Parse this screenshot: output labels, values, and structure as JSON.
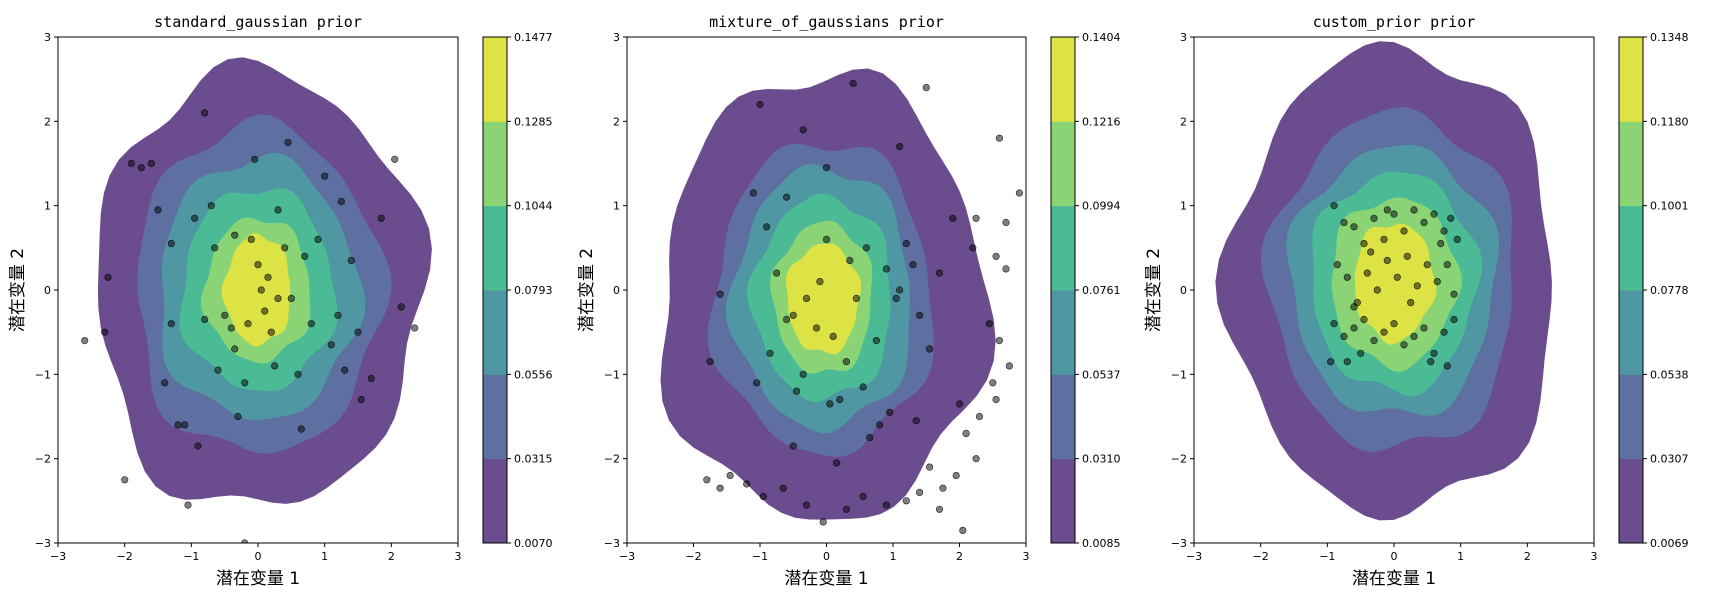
{
  "chart_data": [
    {
      "type": "contour",
      "title": "standard_gaussian prior",
      "xlabel": "潜在变量 1",
      "ylabel": "潜在变量 2",
      "xlim": [
        -3,
        3
      ],
      "ylim": [
        -3,
        3
      ],
      "xticks": [
        "−3",
        "−2",
        "−1",
        "0",
        "1",
        "2",
        "3"
      ],
      "yticks": [
        "−3",
        "−2",
        "−1",
        "0",
        "1",
        "2",
        "3"
      ],
      "colorbar_ticks": [
        "0.0070",
        "0.0315",
        "0.0556",
        "0.0793",
        "0.1044",
        "0.1285",
        "0.1477"
      ],
      "density_center": [
        0.0,
        0.0
      ],
      "level_radii": [
        [
          2.45,
          2.6
        ],
        [
          1.85,
          1.95
        ],
        [
          1.5,
          1.55
        ],
        [
          1.15,
          1.2
        ],
        [
          0.8,
          0.85
        ],
        [
          0.5,
          0.65
        ]
      ],
      "points": [
        [
          -2.6,
          -0.6
        ],
        [
          -2.3,
          -0.5
        ],
        [
          -2.25,
          0.15
        ],
        [
          -2.0,
          -2.25
        ],
        [
          -1.9,
          1.5
        ],
        [
          -1.75,
          1.45
        ],
        [
          -1.6,
          1.5
        ],
        [
          -1.5,
          0.95
        ],
        [
          -1.4,
          -1.1
        ],
        [
          -1.3,
          0.55
        ],
        [
          -1.2,
          -1.6
        ],
        [
          -1.1,
          -1.6
        ],
        [
          -0.9,
          -1.85
        ],
        [
          -1.05,
          -2.55
        ],
        [
          -0.8,
          2.1
        ],
        [
          -0.7,
          1.0
        ],
        [
          -0.65,
          0.5
        ],
        [
          -0.5,
          -0.3
        ],
        [
          -0.4,
          -0.45
        ],
        [
          -0.35,
          -0.7
        ],
        [
          -0.3,
          -1.5
        ],
        [
          -0.2,
          -1.1
        ],
        [
          -0.1,
          0.6
        ],
        [
          0.0,
          0.3
        ],
        [
          0.05,
          0.0
        ],
        [
          0.1,
          -0.25
        ],
        [
          0.15,
          0.15
        ],
        [
          0.2,
          -0.5
        ],
        [
          0.25,
          -0.9
        ],
        [
          0.3,
          0.95
        ],
        [
          0.4,
          0.5
        ],
        [
          0.5,
          -0.1
        ],
        [
          0.6,
          -1.0
        ],
        [
          0.7,
          0.4
        ],
        [
          0.8,
          -0.4
        ],
        [
          0.9,
          0.6
        ],
        [
          1.0,
          1.35
        ],
        [
          1.1,
          -0.65
        ],
        [
          1.2,
          -0.3
        ],
        [
          1.3,
          -0.95
        ],
        [
          1.4,
          0.35
        ],
        [
          1.5,
          -0.5
        ],
        [
          1.55,
          -1.3
        ],
        [
          1.7,
          -1.05
        ],
        [
          1.85,
          0.85
        ],
        [
          2.05,
          1.55
        ],
        [
          2.15,
          -0.2
        ],
        [
          2.35,
          -0.45
        ],
        [
          -0.2,
          -3.0
        ],
        [
          -0.05,
          1.55
        ],
        [
          0.45,
          1.75
        ],
        [
          -0.6,
          -0.95
        ],
        [
          -0.95,
          0.85
        ],
        [
          0.65,
          -1.65
        ],
        [
          -0.35,
          0.65
        ],
        [
          0.3,
          -0.1
        ],
        [
          -0.15,
          -0.4
        ],
        [
          1.25,
          1.05
        ],
        [
          -1.3,
          -0.4
        ],
        [
          -0.8,
          -0.35
        ]
      ]
    },
    {
      "type": "contour",
      "title": "mixture_of_gaussians prior",
      "xlabel": "潜在变量 1",
      "ylabel": "潜在变量 2",
      "xlim": [
        -3,
        3
      ],
      "ylim": [
        -3,
        3
      ],
      "xticks": [
        "−3",
        "−2",
        "−1",
        "0",
        "1",
        "2",
        "3"
      ],
      "yticks": [
        "−3",
        "−2",
        "−1",
        "0",
        "1",
        "2",
        "3"
      ],
      "colorbar_ticks": [
        "0.0085",
        "0.0310",
        "0.0537",
        "0.0761",
        "0.0994",
        "0.1216",
        "0.1404"
      ],
      "density_center": [
        -0.05,
        -0.1
      ],
      "level_radii": [
        [
          2.45,
          2.65
        ],
        [
          1.65,
          1.85
        ],
        [
          1.35,
          1.55
        ],
        [
          1.05,
          1.2
        ],
        [
          0.75,
          0.9
        ],
        [
          0.55,
          0.65
        ]
      ],
      "points": [
        [
          2.6,
          1.8
        ],
        [
          2.9,
          1.15
        ],
        [
          2.7,
          0.8
        ],
        [
          2.55,
          0.4
        ],
        [
          2.7,
          0.25
        ],
        [
          2.45,
          -0.4
        ],
        [
          2.6,
          -0.6
        ],
        [
          2.75,
          -0.9
        ],
        [
          2.5,
          -1.1
        ],
        [
          2.55,
          -1.3
        ],
        [
          2.3,
          -1.5
        ],
        [
          2.0,
          -1.35
        ],
        [
          2.1,
          -1.7
        ],
        [
          2.25,
          -2.0
        ],
        [
          1.95,
          -2.2
        ],
        [
          1.75,
          -2.35
        ],
        [
          1.7,
          -2.6
        ],
        [
          2.05,
          -2.85
        ],
        [
          1.55,
          -2.1
        ],
        [
          1.4,
          -2.4
        ],
        [
          1.2,
          -2.5
        ],
        [
          0.9,
          -2.55
        ],
        [
          0.55,
          -2.45
        ],
        [
          0.3,
          -2.6
        ],
        [
          -0.05,
          -2.75
        ],
        [
          -0.3,
          -2.55
        ],
        [
          -0.65,
          -2.35
        ],
        [
          -0.95,
          -2.45
        ],
        [
          -1.2,
          -2.3
        ],
        [
          -1.45,
          -2.2
        ],
        [
          -1.6,
          -2.35
        ],
        [
          -1.8,
          -2.25
        ],
        [
          -1.75,
          -0.85
        ],
        [
          -1.6,
          -0.05
        ],
        [
          -1.0,
          2.2
        ],
        [
          -0.35,
          1.9
        ],
        [
          0.4,
          2.45
        ],
        [
          1.5,
          2.4
        ],
        [
          1.1,
          1.7
        ],
        [
          0.0,
          1.45
        ],
        [
          -0.6,
          1.1
        ],
        [
          -1.1,
          1.15
        ],
        [
          -0.9,
          0.75
        ],
        [
          -0.5,
          -0.3
        ],
        [
          -0.6,
          -0.35
        ],
        [
          -0.3,
          -0.1
        ],
        [
          -0.1,
          0.1
        ],
        [
          0.0,
          0.6
        ],
        [
          0.1,
          -0.55
        ],
        [
          0.3,
          -0.85
        ],
        [
          0.45,
          -0.1
        ],
        [
          0.6,
          0.5
        ],
        [
          0.75,
          -0.6
        ],
        [
          0.9,
          0.25
        ],
        [
          1.05,
          -0.1
        ],
        [
          1.2,
          0.55
        ],
        [
          1.4,
          -0.3
        ],
        [
          1.55,
          -0.7
        ],
        [
          1.7,
          0.2
        ],
        [
          1.9,
          0.85
        ],
        [
          2.2,
          0.5
        ],
        [
          2.25,
          0.85
        ],
        [
          -0.35,
          -1.0
        ],
        [
          0.2,
          -1.3
        ],
        [
          0.55,
          -1.15
        ],
        [
          0.05,
          -1.35
        ],
        [
          -0.45,
          -1.2
        ],
        [
          -0.85,
          -0.75
        ],
        [
          -1.05,
          -1.1
        ],
        [
          1.35,
          -1.55
        ],
        [
          0.95,
          -1.45
        ],
        [
          1.1,
          0.0
        ],
        [
          1.3,
          0.3
        ],
        [
          0.8,
          -1.6
        ],
        [
          -0.15,
          -0.45
        ],
        [
          0.35,
          0.35
        ],
        [
          -0.75,
          0.2
        ],
        [
          0.65,
          -1.75
        ],
        [
          0.15,
          -2.05
        ],
        [
          -0.5,
          -1.85
        ]
      ]
    },
    {
      "type": "contour",
      "title": "custom_prior prior",
      "xlabel": "潜在变量 1",
      "ylabel": "潜在变量 2",
      "xlim": [
        -3,
        3
      ],
      "ylim": [
        -3,
        3
      ],
      "xticks": [
        "−3",
        "−2",
        "−1",
        "0",
        "1",
        "2",
        "3"
      ],
      "yticks": [
        "−3",
        "−2",
        "−1",
        "0",
        "1",
        "2",
        "3"
      ],
      "colorbar_ticks": [
        "0.0069",
        "0.0307",
        "0.0538",
        "0.0778",
        "0.1001",
        "0.1180",
        "0.1348"
      ],
      "density_center": [
        0.0,
        0.1
      ],
      "level_radii": [
        [
          2.45,
          2.75
        ],
        [
          1.85,
          2.0
        ],
        [
          1.55,
          1.6
        ],
        [
          1.25,
          1.3
        ],
        [
          0.95,
          1.0
        ],
        [
          0.6,
          0.7
        ]
      ],
      "points": [
        [
          -0.9,
          1.0
        ],
        [
          -0.75,
          0.8
        ],
        [
          -0.6,
          0.75
        ],
        [
          -0.45,
          0.55
        ],
        [
          -0.3,
          0.85
        ],
        [
          -0.15,
          0.6
        ],
        [
          0.0,
          0.9
        ],
        [
          0.15,
          0.7
        ],
        [
          0.3,
          0.95
        ],
        [
          0.45,
          0.8
        ],
        [
          0.6,
          0.9
        ],
        [
          0.75,
          0.7
        ],
        [
          0.85,
          0.85
        ],
        [
          0.95,
          0.6
        ],
        [
          -0.85,
          0.3
        ],
        [
          -0.7,
          0.15
        ],
        [
          -0.55,
          -0.15
        ],
        [
          -0.4,
          0.2
        ],
        [
          -0.25,
          0.0
        ],
        [
          -0.1,
          0.35
        ],
        [
          0.05,
          0.15
        ],
        [
          0.2,
          0.4
        ],
        [
          0.35,
          0.05
        ],
        [
          0.5,
          0.3
        ],
        [
          0.65,
          0.1
        ],
        [
          0.8,
          0.3
        ],
        [
          0.9,
          -0.05
        ],
        [
          -0.9,
          -0.4
        ],
        [
          -0.75,
          -0.55
        ],
        [
          -0.6,
          -0.45
        ],
        [
          -0.45,
          -0.35
        ],
        [
          -0.3,
          -0.6
        ],
        [
          -0.15,
          -0.5
        ],
        [
          0.0,
          -0.4
        ],
        [
          0.15,
          -0.65
        ],
        [
          0.3,
          -0.55
        ],
        [
          0.45,
          -0.45
        ],
        [
          0.6,
          -0.75
        ],
        [
          0.75,
          -0.5
        ],
        [
          0.9,
          -0.35
        ],
        [
          -0.95,
          -0.85
        ],
        [
          -0.7,
          -0.85
        ],
        [
          -0.5,
          -0.75
        ],
        [
          0.55,
          -0.85
        ],
        [
          0.8,
          -0.9
        ],
        [
          -0.6,
          -0.2
        ],
        [
          -0.1,
          0.95
        ],
        [
          0.25,
          -0.15
        ],
        [
          -0.35,
          0.45
        ],
        [
          0.7,
          0.55
        ]
      ]
    }
  ]
}
